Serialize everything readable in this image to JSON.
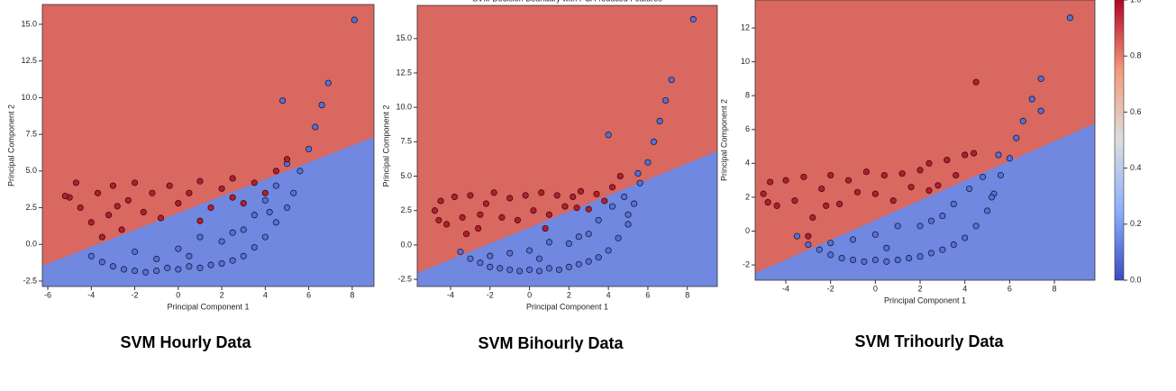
{
  "chart_data": [
    {
      "type": "scatter",
      "caption": "SVM Hourly Data",
      "xlabel": "Principal Component 1",
      "ylabel": "Principal Component 2",
      "xlim": [
        -6.25,
        9.0
      ],
      "ylim": [
        -2.87,
        16.35
      ],
      "xticks": [
        -6,
        -4,
        -2,
        0,
        2,
        4,
        6,
        8
      ],
      "yticks": [
        {
          "value": -2.5,
          "label": "-2.5"
        },
        {
          "value": 0,
          "label": "0.0"
        },
        {
          "value": 2.5,
          "label": "2.5"
        },
        {
          "value": 5,
          "label": "5.0"
        },
        {
          "value": 7.5,
          "label": "7.5"
        },
        {
          "value": 10,
          "label": "10.0"
        },
        {
          "value": 12.5,
          "label": "12.5"
        },
        {
          "value": 15,
          "label": "15.0"
        }
      ],
      "boundary_x": [
        -6.25,
        9.0
      ],
      "boundary_y": [
        -1.46,
        7.32
      ],
      "region_colors": [
        "#7188e0",
        "#d96860"
      ],
      "series": [
        {
          "name": "0",
          "color": "#5470e0",
          "x": [
            -4,
            -3.5,
            -3,
            -2.5,
            -2,
            -1.5,
            -1,
            -0.5,
            0,
            0.5,
            1,
            1.5,
            2,
            2.5,
            3,
            3.5,
            4,
            4.5,
            5,
            5.3,
            5.6,
            6,
            6.3,
            6.6,
            6.9,
            4.8,
            -2,
            0,
            1,
            2,
            3,
            3.5,
            4,
            4.5,
            5,
            8.1,
            -1,
            0.5,
            2.5,
            4.2
          ],
          "y": [
            -0.8,
            -1.2,
            -1.5,
            -1.7,
            -1.8,
            -1.9,
            -1.8,
            -1.6,
            -1.7,
            -1.5,
            -1.6,
            -1.4,
            -1.3,
            -1.1,
            -0.8,
            -0.2,
            0.5,
            1.5,
            2.5,
            3.5,
            5,
            6.5,
            8,
            9.5,
            11,
            9.8,
            -0.5,
            -0.3,
            0.5,
            0.2,
            1,
            2,
            3,
            4,
            5.5,
            15.3,
            -1,
            -0.8,
            0.8,
            2.2
          ]
        },
        {
          "name": "1",
          "color": "#c0182a",
          "x": [
            -5,
            -4.7,
            -4.5,
            -4,
            -3.7,
            -3.2,
            -3,
            -2.6,
            -2.3,
            -2,
            -1.6,
            -1.2,
            -0.8,
            -0.4,
            0,
            0.5,
            1,
            1.5,
            2,
            2.5,
            3,
            3.5,
            4,
            4.5,
            5,
            -5.2,
            -3.5,
            1,
            2.5,
            -2.8
          ],
          "y": [
            3.2,
            4.2,
            2.5,
            1.5,
            3.5,
            2,
            4,
            1,
            3,
            4.2,
            2.2,
            3.5,
            1.8,
            4,
            2.8,
            3.5,
            4.3,
            2.5,
            3.8,
            4.5,
            2.8,
            4.2,
            3.5,
            5,
            5.8,
            3.3,
            0.5,
            1.6,
            3.2,
            2.6
          ]
        }
      ]
    },
    {
      "type": "scatter",
      "title": "SVM Decision Boundary with PCA-reduced Features",
      "caption": "SVM Bihourly Data",
      "xlabel": "Principal Component 1",
      "ylabel": "Principal Component 2",
      "xlim": [
        -5.69,
        9.52
      ],
      "ylim": [
        -3.02,
        17.41
      ],
      "xticks": [
        -4,
        -2,
        0,
        2,
        4,
        6,
        8
      ],
      "yticks": [
        {
          "value": -2.5,
          "label": "-2.5"
        },
        {
          "value": 0,
          "label": "0.0"
        },
        {
          "value": 2.5,
          "label": "2.5"
        },
        {
          "value": 5,
          "label": "5.0"
        },
        {
          "value": 7.5,
          "label": "7.5"
        },
        {
          "value": 10,
          "label": "10.0"
        },
        {
          "value": 12.5,
          "label": "12.5"
        },
        {
          "value": 15,
          "label": "15.0"
        }
      ],
      "boundary_x": [
        -5.69,
        9.52
      ],
      "boundary_y": [
        -2.04,
        6.81
      ],
      "region_colors": [
        "#7188e0",
        "#d96860"
      ],
      "series": [
        {
          "name": "0",
          "color": "#5470e0",
          "x": [
            -3.5,
            -3,
            -2.5,
            -2,
            -1.5,
            -1,
            -0.5,
            0,
            0.5,
            1,
            1.5,
            2,
            2.5,
            3,
            3.5,
            4,
            4.5,
            5,
            5.3,
            5.6,
            6,
            6.3,
            6.6,
            6.9,
            7.2,
            4,
            -1,
            0,
            1,
            2,
            3,
            3.5,
            4.2,
            4.8,
            5.5,
            8.3,
            -2,
            0.5,
            2.5,
            5
          ],
          "y": [
            -0.5,
            -1,
            -1.3,
            -1.6,
            -1.7,
            -1.8,
            -1.9,
            -1.8,
            -1.9,
            -1.7,
            -1.8,
            -1.6,
            -1.4,
            -1.2,
            -0.9,
            -0.4,
            0.5,
            1.5,
            3,
            4.5,
            6,
            7.5,
            9,
            10.5,
            12,
            8,
            -0.6,
            -0.4,
            0.2,
            0.1,
            0.8,
            1.8,
            2.8,
            3.5,
            5.2,
            16.4,
            -0.8,
            -1,
            0.6,
            2.2
          ]
        },
        {
          "name": "1",
          "color": "#c0182a",
          "x": [
            -4.8,
            -4.5,
            -4.2,
            -3.8,
            -3.4,
            -3,
            -2.6,
            -2.2,
            -1.8,
            -1.4,
            -1,
            -0.6,
            -0.2,
            0.2,
            0.6,
            1,
            1.4,
            1.8,
            2.2,
            2.6,
            3,
            3.4,
            3.8,
            4.2,
            4.6,
            -4.6,
            -3.2,
            0.8,
            2.4,
            -2.5
          ],
          "y": [
            2.5,
            3.2,
            1.5,
            3.5,
            2,
            3.6,
            1.2,
            3,
            3.8,
            2,
            3.4,
            1.8,
            3.6,
            2.5,
            3.8,
            2.2,
            3.6,
            2.8,
            3.5,
            3.9,
            2.6,
            3.7,
            3.2,
            4.2,
            5,
            1.8,
            0.8,
            1.2,
            2.7,
            2.2
          ]
        }
      ]
    },
    {
      "type": "scatter",
      "caption": "SVM Trihourly Data",
      "xlabel": "Principal Component 1",
      "ylabel": "Principal Component 2",
      "xlim": [
        -5.37,
        9.81
      ],
      "ylim": [
        -2.9,
        13.65
      ],
      "xticks": [
        -4,
        -2,
        0,
        2,
        4,
        6,
        8
      ],
      "yticks": [
        -2,
        0,
        2,
        4,
        6,
        8,
        10,
        12
      ],
      "boundary_x": [
        -5.37,
        9.81
      ],
      "boundary_y": [
        -2.48,
        6.36
      ],
      "region_colors": [
        "#7188e0",
        "#d96860"
      ],
      "series": [
        {
          "name": "0",
          "color": "#5470e0",
          "x": [
            -3.5,
            -3,
            -2.5,
            -2,
            -1.5,
            -1,
            -0.5,
            0,
            0.5,
            1,
            1.5,
            2,
            2.5,
            3,
            3.5,
            4,
            4.5,
            5,
            5.3,
            5.6,
            6,
            6.3,
            6.6,
            7,
            7.4,
            7.4,
            -1,
            0,
            1,
            2,
            3,
            3.5,
            4.2,
            4.8,
            5.5,
            8.7,
            -2,
            0.5,
            2.5,
            5.2
          ],
          "y": [
            -0.3,
            -0.8,
            -1.1,
            -1.4,
            -1.6,
            -1.7,
            -1.8,
            -1.7,
            -1.8,
            -1.7,
            -1.6,
            -1.5,
            -1.3,
            -1.1,
            -0.8,
            -0.4,
            0.3,
            1.2,
            2.2,
            3.3,
            4.3,
            5.5,
            6.5,
            7.8,
            9,
            7.1,
            -0.5,
            -0.2,
            0.3,
            0.3,
            0.9,
            1.6,
            2.5,
            3.2,
            4.5,
            12.6,
            -0.7,
            -1,
            0.6,
            2
          ]
        },
        {
          "name": "1",
          "color": "#c0182a",
          "x": [
            -5,
            -4.7,
            -4.4,
            -4,
            -3.6,
            -3.2,
            -2.8,
            -2.4,
            -2,
            -1.6,
            -1.2,
            -0.8,
            -0.4,
            0,
            0.4,
            0.8,
            1.2,
            1.6,
            2,
            2.4,
            2.8,
            3.2,
            3.6,
            4,
            4.4,
            -4.8,
            4.5,
            -3,
            2.4,
            -2.2
          ],
          "y": [
            2.2,
            2.9,
            1.5,
            3,
            1.8,
            3.2,
            0.8,
            2.5,
            3.3,
            1.6,
            3,
            2.3,
            3.5,
            2.2,
            3.3,
            1.8,
            3.4,
            2.6,
            3.6,
            4,
            2.7,
            4.2,
            3.3,
            4.5,
            4.6,
            1.7,
            8.8,
            -0.3,
            2.4,
            1.5
          ]
        }
      ]
    },
    {
      "type": "colorbar",
      "ylim": [
        0,
        1
      ],
      "colors": [
        "#3b4cc0",
        "#8db0fe",
        "#dddddd",
        "#f49a7b",
        "#b40426"
      ],
      "yticks": [
        {
          "value": 0,
          "label": "0.0"
        },
        {
          "value": 0.2,
          "label": "0.2"
        },
        {
          "value": 0.4,
          "label": "0.4"
        },
        {
          "value": 0.6,
          "label": "0.6"
        },
        {
          "value": 0.8,
          "label": "0.8"
        },
        {
          "value": 1,
          "label": "1.0"
        }
      ]
    }
  ]
}
